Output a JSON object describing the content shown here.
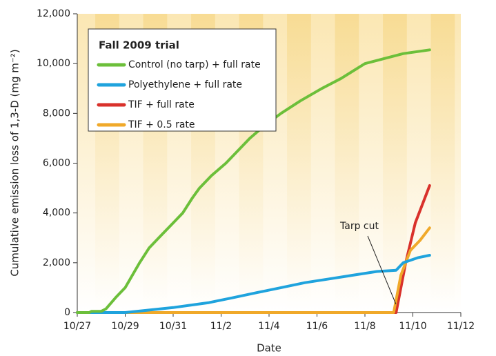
{
  "chart_data": {
    "type": "line",
    "xlabel": "Date",
    "ylabel": "Cumulative emission loss of 1,3-D (mg m⁻²)",
    "legend_title": "Fall 2009 trial",
    "legend_position": "upper left",
    "annotation": "Tarp cut",
    "xlim": [
      0,
      16
    ],
    "xticks": [
      {
        "value": 0,
        "label": "10/27"
      },
      {
        "value": 2,
        "label": "10/29"
      },
      {
        "value": 4,
        "label": "10/31"
      },
      {
        "value": 6,
        "label": "11/2"
      },
      {
        "value": 8,
        "label": "11/4"
      },
      {
        "value": 10,
        "label": "11/6"
      },
      {
        "value": 12,
        "label": "11/8"
      },
      {
        "value": 14,
        "label": "11/10"
      },
      {
        "value": 16,
        "label": "11/12"
      }
    ],
    "ylim": [
      0,
      12000
    ],
    "yticks": [
      0,
      {
        "value": 2000,
        "label": "2,000"
      },
      {
        "value": 4000,
        "label": "4,000"
      },
      {
        "value": 6000,
        "label": "6,000"
      },
      {
        "value": 8000,
        "label": "8,000"
      },
      {
        "value": 10000,
        "label": "10,000"
      },
      {
        "value": 12000,
        "label": "12,000"
      }
    ],
    "series": [
      {
        "name": "Control (no tarp) + full rate",
        "color": "#6cbf3a",
        "x": [
          0,
          0.5,
          0.6,
          1.0,
          1.2,
          1.6,
          2.0,
          2.3,
          2.6,
          3.0,
          3.4,
          3.9,
          4.4,
          4.8,
          5.1,
          5.6,
          6.2,
          6.7,
          7.2,
          7.8,
          8.5,
          9.3,
          10.2,
          11.0,
          12.0,
          12.8,
          13.6,
          14.7
        ],
        "values": [
          0,
          0,
          50,
          50,
          150,
          600,
          1000,
          1500,
          2000,
          2600,
          3000,
          3500,
          4000,
          4600,
          5000,
          5500,
          6000,
          6500,
          7000,
          7500,
          8000,
          8500,
          9000,
          9400,
          10000,
          10200,
          10400,
          10550
        ]
      },
      {
        "name": "Polyethylene + full rate",
        "color": "#1fa3dd",
        "x": [
          0,
          2,
          3,
          4,
          5.5,
          6.5,
          7.5,
          8.5,
          9.5,
          10.5,
          11.5,
          12.5,
          13.3,
          13.6,
          14.2,
          14.7
        ],
        "values": [
          0,
          0,
          100,
          200,
          400,
          600,
          800,
          1000,
          1200,
          1350,
          1500,
          1650,
          1700,
          2000,
          2200,
          2300
        ]
      },
      {
        "name": "TIF + full rate",
        "color": "#d9312b",
        "x": [
          0,
          13.3,
          13.7,
          14.1,
          14.7
        ],
        "values": [
          0,
          0,
          2000,
          3600,
          5100
        ]
      },
      {
        "name": "TIF + 0.5 rate",
        "color": "#f0a92a",
        "x": [
          0,
          13.2,
          13.5,
          13.9,
          14.3,
          14.7
        ],
        "values": [
          0,
          0,
          1500,
          2500,
          2900,
          3400
        ]
      }
    ]
  }
}
